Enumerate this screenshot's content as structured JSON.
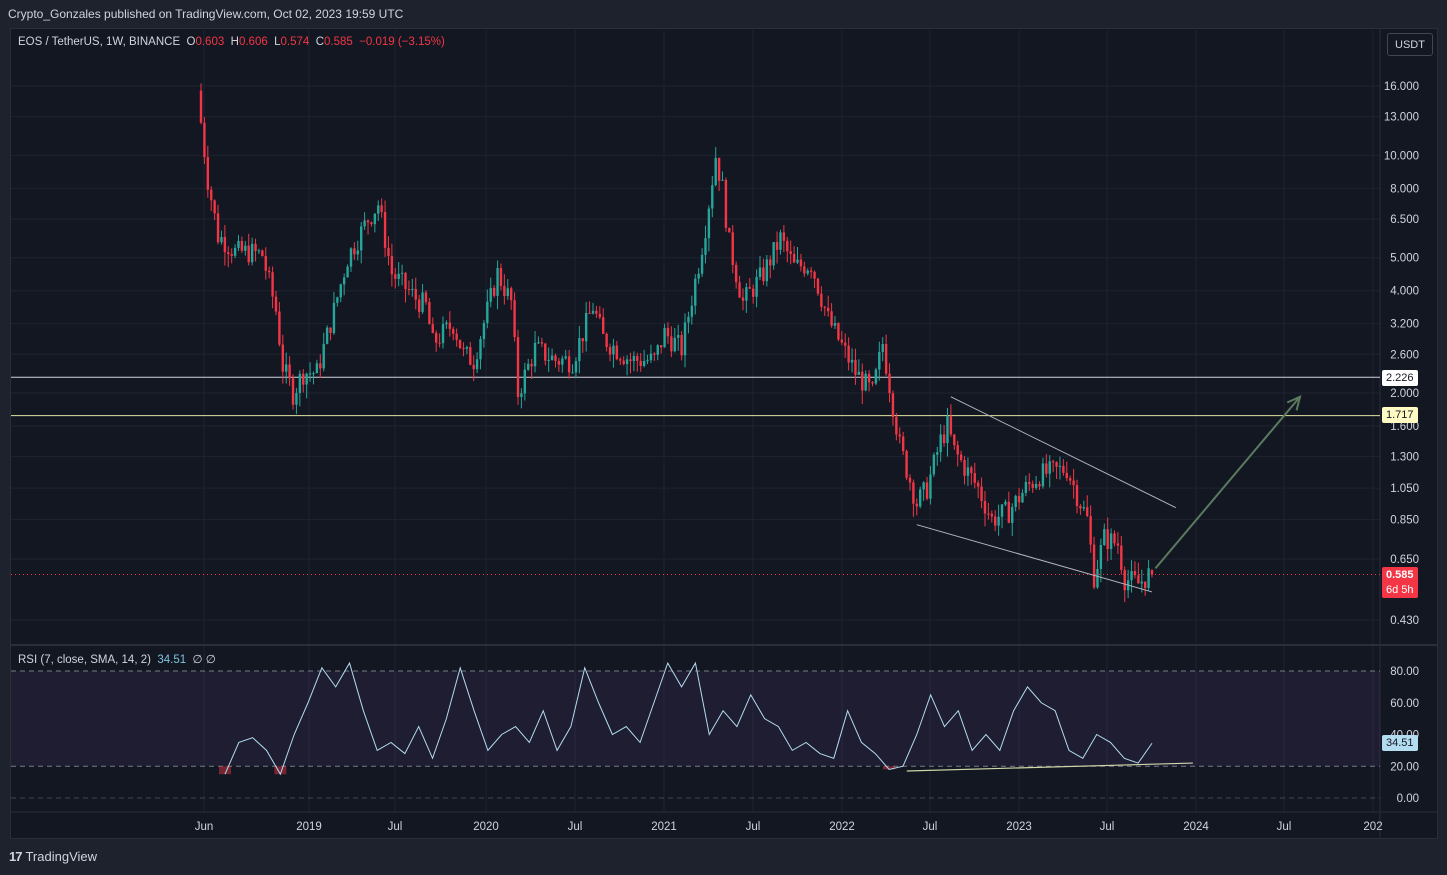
{
  "header": {
    "published": "Crypto_Gonzales published on TradingView.com, Oct 02, 2023 19:59 UTC"
  },
  "legend": {
    "symbol": "EOS / TetherUS, 1W, BINANCE",
    "o_label": "O",
    "o": "0.603",
    "h_label": "H",
    "h": "0.606",
    "l_label": "L",
    "l": "0.574",
    "c_label": "C",
    "c": "0.585",
    "change": "−0.019 (−3.15%)"
  },
  "currency_button": "USDT",
  "rsi_legend": {
    "label": "RSI (7, close, SMA, 14, 2)",
    "value": "34.51",
    "extra": "∅  ∅"
  },
  "tags": {
    "upper_level": "2.226",
    "lower_level": "1.717",
    "last_price": "0.585",
    "countdown": "6d 5h",
    "rsi_value": "34.51"
  },
  "branding": {
    "logo": "17",
    "name": "TradingView"
  },
  "colors": {
    "up": "#26a69a",
    "down": "#f23645",
    "upper_level_line": "#d1d4dc",
    "lower_level_line": "#e0e3a0",
    "rsi_line": "#b2dcef",
    "arrow": "#5b7a5e"
  },
  "chart_data": [
    {
      "type": "candlestick",
      "title": "EOS / TetherUS, 1W, BINANCE",
      "scale": "log",
      "ylim": [
        0.38,
        20
      ],
      "y_ticks": [
        "16.000",
        "13.000",
        "10.000",
        "8.000",
        "6.500",
        "5.000",
        "4.000",
        "3.200",
        "2.600",
        "2.000",
        "1.600",
        "1.300",
        "1.050",
        "0.850",
        "0.650",
        "0.430"
      ],
      "x_ticks": [
        "Jun",
        "2019",
        "Jul",
        "2020",
        "Jul",
        "2021",
        "Jul",
        "2022",
        "Jul",
        "2023",
        "Jul",
        "2024",
        "Jul",
        "202"
      ],
      "anchors": [
        [
          "2018-05-28",
          15.5
        ],
        [
          "2018-06-04",
          12.5
        ],
        [
          "2018-06-18",
          8.5
        ],
        [
          "2018-07-09",
          5.8
        ],
        [
          "2018-07-23",
          5.6
        ],
        [
          "2018-08-13",
          5.2
        ],
        [
          "2018-09-10",
          5.2
        ],
        [
          "2018-10-08",
          5.1
        ],
        [
          "2018-11-05",
          3.5
        ],
        [
          "2018-11-19",
          2.4
        ],
        [
          "2018-12-10",
          2.0
        ],
        [
          "2018-12-31",
          2.3
        ],
        [
          "2019-01-28",
          2.3
        ],
        [
          "2019-03-04",
          3.5
        ],
        [
          "2019-04-01",
          5.0
        ],
        [
          "2019-05-13",
          6.5
        ],
        [
          "2019-06-03",
          7.2
        ],
        [
          "2019-07-01",
          4.5
        ],
        [
          "2019-08-19",
          3.8
        ],
        [
          "2019-09-09",
          3.6
        ],
        [
          "2019-09-23",
          2.8
        ],
        [
          "2019-11-04",
          3.2
        ],
        [
          "2019-11-25",
          2.6
        ],
        [
          "2019-12-16",
          2.5
        ],
        [
          "2020-02-03",
          4.5
        ],
        [
          "2020-03-02",
          3.7
        ],
        [
          "2020-03-16",
          2.0
        ],
        [
          "2020-04-20",
          2.7
        ],
        [
          "2020-06-01",
          2.5
        ],
        [
          "2020-07-06",
          2.5
        ],
        [
          "2020-08-17",
          3.6
        ],
        [
          "2020-09-07",
          2.9
        ],
        [
          "2020-11-02",
          2.5
        ],
        [
          "2020-12-21",
          2.5
        ],
        [
          "2021-01-11",
          3.0
        ],
        [
          "2021-02-15",
          2.7
        ],
        [
          "2021-03-22",
          4.8
        ],
        [
          "2021-04-05",
          6.2
        ],
        [
          "2021-04-26",
          10.0
        ],
        [
          "2021-05-10",
          8.0
        ],
        [
          "2021-05-24",
          5.5
        ],
        [
          "2021-06-21",
          3.7
        ],
        [
          "2021-08-02",
          4.5
        ],
        [
          "2021-09-06",
          5.7
        ],
        [
          "2021-10-04",
          4.7
        ],
        [
          "2021-11-08",
          4.8
        ],
        [
          "2021-12-13",
          3.3
        ],
        [
          "2022-02-07",
          2.3
        ],
        [
          "2022-03-14",
          2.0
        ],
        [
          "2022-04-04",
          2.8
        ],
        [
          "2022-05-09",
          1.4
        ],
        [
          "2022-06-13",
          0.95
        ],
        [
          "2022-07-04",
          1.05
        ],
        [
          "2022-08-01",
          1.45
        ],
        [
          "2022-08-15",
          1.6
        ],
        [
          "2022-08-29",
          1.35
        ],
        [
          "2022-10-17",
          1.05
        ],
        [
          "2022-11-14",
          0.85
        ],
        [
          "2022-12-19",
          0.9
        ],
        [
          "2023-01-23",
          1.05
        ],
        [
          "2023-02-20",
          1.15
        ],
        [
          "2023-04-17",
          1.2
        ],
        [
          "2023-05-29",
          0.85
        ],
        [
          "2023-06-12",
          0.58
        ],
        [
          "2023-07-03",
          0.75
        ],
        [
          "2023-07-31",
          0.72
        ],
        [
          "2023-08-14",
          0.57
        ],
        [
          "2023-09-11",
          0.55
        ],
        [
          "2023-10-02",
          0.585
        ]
      ],
      "last": {
        "o": 0.603,
        "h": 0.606,
        "l": 0.574,
        "c": 0.585
      },
      "horizontal_levels": [
        2.226,
        1.717
      ],
      "channel_upper": [
        [
          "2022-08-15",
          1.95
        ],
        [
          "2023-11-20",
          0.92
        ]
      ],
      "channel_lower": [
        [
          "2022-06-06",
          0.82
        ],
        [
          "2023-10-02",
          0.52
        ]
      ],
      "projection_arrow": [
        [
          "2023-10-09",
          0.61
        ],
        [
          "2024-08-01",
          1.95
        ]
      ]
    },
    {
      "type": "line",
      "title": "RSI (7, close, SMA, 14, 2)",
      "ylim": [
        0,
        90
      ],
      "y_ticks": [
        "80.00",
        "60.00",
        "40.00",
        "20.00",
        "0.00"
      ],
      "bands": [
        20,
        80
      ],
      "last_value": 34.51,
      "values_sample": [
        15,
        35,
        38,
        30,
        15,
        40,
        60,
        82,
        70,
        85,
        55,
        30,
        35,
        28,
        45,
        25,
        50,
        82,
        55,
        30,
        40,
        45,
        35,
        55,
        30,
        45,
        82,
        60,
        40,
        45,
        35,
        60,
        85,
        70,
        85,
        40,
        55,
        45,
        65,
        50,
        45,
        30,
        35,
        28,
        25,
        55,
        35,
        28,
        18,
        20,
        40,
        65,
        45,
        55,
        30,
        40,
        30,
        55,
        70,
        60,
        55,
        30,
        25,
        40,
        35,
        25,
        22,
        34.5
      ],
      "trendline": [
        [
          "2022-06-06",
          17
        ],
        [
          "2023-12-25",
          22
        ]
      ]
    }
  ]
}
